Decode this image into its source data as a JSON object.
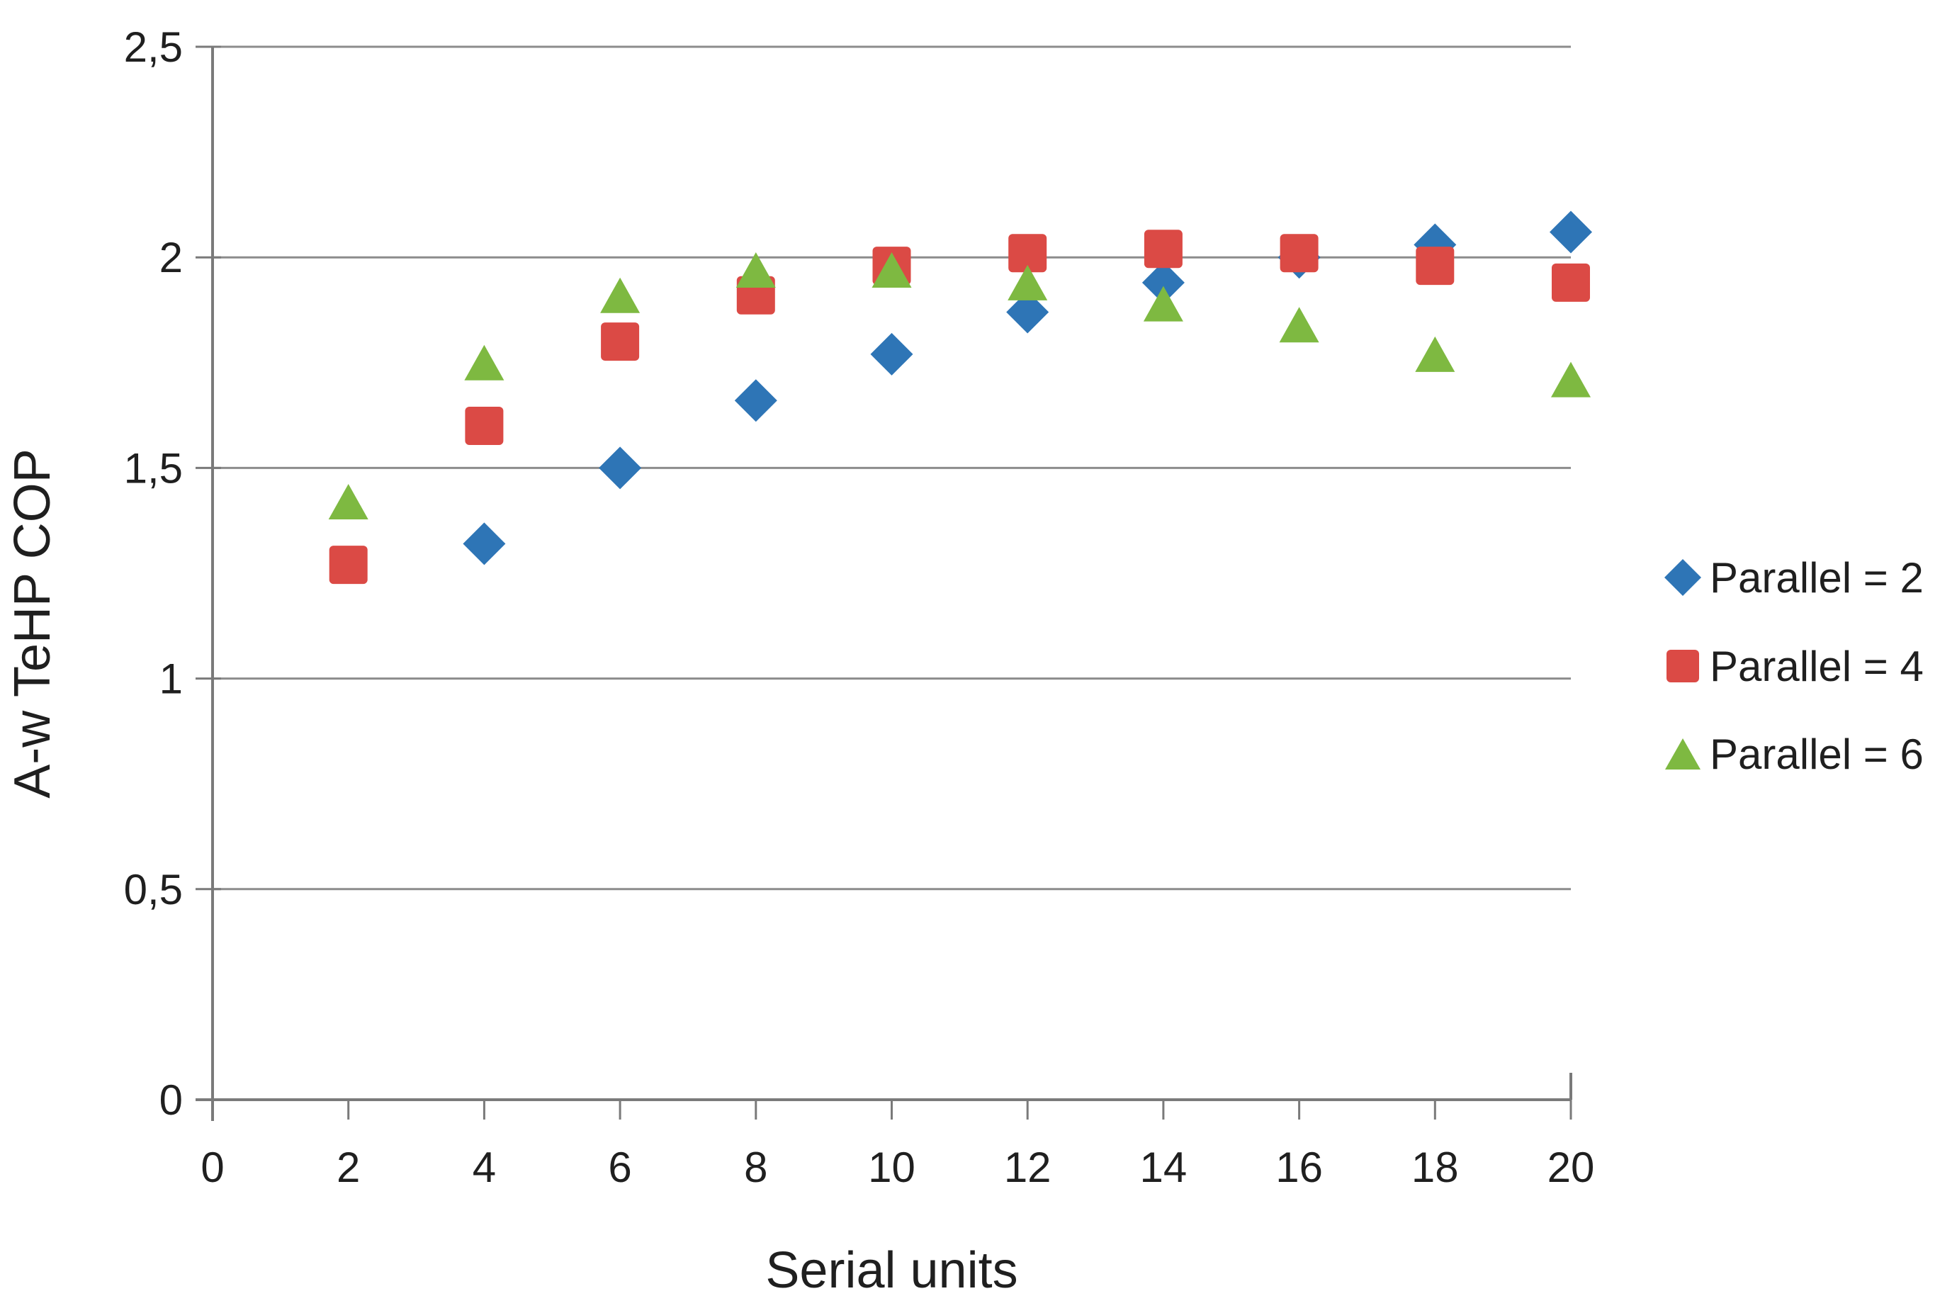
{
  "chart_data": {
    "type": "scatter",
    "title": "",
    "xlabel": "Serial units",
    "ylabel": "A-w TeHP COP",
    "xlim": [
      0,
      20
    ],
    "ylim": [
      0,
      2.5
    ],
    "grid": "horizontal-only",
    "legend_position": "right",
    "decimal_separator": ",",
    "x_ticks": [
      0,
      2,
      4,
      6,
      8,
      10,
      12,
      14,
      16,
      18,
      20
    ],
    "x_tick_labels": [
      "0",
      "2",
      "4",
      "6",
      "8",
      "10",
      "12",
      "14",
      "16",
      "18",
      "20"
    ],
    "y_tick_values": [
      0,
      0.5,
      1,
      1.5,
      2,
      2.5
    ],
    "y_tick_labels": [
      "0",
      "0,5",
      "1",
      "1,5",
      "2",
      "2,5"
    ],
    "series": [
      {
        "name": "Parallel = 2",
        "marker": "diamond",
        "color": "#2E75B6",
        "x": [
          4,
          6,
          8,
          10,
          12,
          14,
          16,
          18,
          20
        ],
        "y": [
          1.32,
          1.5,
          1.66,
          1.77,
          1.87,
          1.94,
          2.0,
          2.03,
          2.06
        ]
      },
      {
        "name": "Parallel = 4",
        "marker": "square",
        "color": "#DB4A45",
        "x": [
          2,
          4,
          6,
          8,
          10,
          12,
          14,
          16,
          18,
          20
        ],
        "y": [
          1.27,
          1.6,
          1.8,
          1.91,
          1.98,
          2.01,
          2.02,
          2.01,
          1.98,
          1.94
        ]
      },
      {
        "name": "Parallel = 6",
        "marker": "triangle",
        "color": "#7EB941",
        "x": [
          2,
          4,
          6,
          8,
          10,
          12,
          14,
          16,
          18,
          20
        ],
        "y": [
          1.42,
          1.75,
          1.91,
          1.97,
          1.97,
          1.94,
          1.89,
          1.84,
          1.77,
          1.71
        ]
      }
    ]
  },
  "colors": {
    "background": "#ffffff",
    "gridline": "#8C8C8C",
    "axis": "#7A7A7A",
    "tick_text": "#1f1f1f",
    "series_blue": "#2E75B6",
    "series_red": "#DB4A45",
    "series_green": "#7EB941"
  }
}
